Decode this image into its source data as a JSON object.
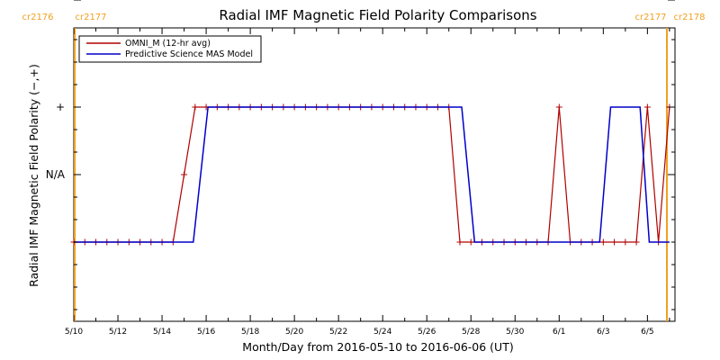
{
  "chart_data": {
    "type": "line",
    "title": "Radial IMF Magnetic Field Polarity Comparisons",
    "xlabel": "Month/Day from 2016-05-10 to 2016-06-06 (UT)",
    "ylabel": "Radial IMF Magnetic Field Polarity (−,+)",
    "x_tick_labels": [
      "5/10",
      "5/12",
      "5/14",
      "5/16",
      "5/18",
      "5/20",
      "5/22",
      "5/24",
      "5/26",
      "5/28",
      "5/30",
      "6/1",
      "6/3",
      "6/5"
    ],
    "y_tick_labels": [
      "−",
      "N/A",
      "+"
    ],
    "carrington_labels": {
      "left": [
        "cr2176",
        "cr2177"
      ],
      "right": [
        "cr2177",
        "cr2178"
      ]
    },
    "legend": {
      "placement": "top-left"
    },
    "colors": {
      "omni": "#b00000",
      "model": "#0000cc",
      "carrington": "#f0a020"
    },
    "series": [
      {
        "name": "OMNI_M (12-hr avg)",
        "color": "#b00000",
        "marker": "+",
        "x": [
          "5/10 00:00",
          "5/10 12:00",
          "5/11 00:00",
          "5/11 12:00",
          "5/12 00:00",
          "5/12 12:00",
          "5/13 00:00",
          "5/13 12:00",
          "5/14 00:00",
          "5/14 12:00",
          "5/15 00:00",
          "5/15 12:00",
          "5/16 00:00",
          "5/16 12:00",
          "5/17 00:00",
          "5/17 12:00",
          "5/18 00:00",
          "5/18 12:00",
          "5/19 00:00",
          "5/19 12:00",
          "5/20 00:00",
          "5/20 12:00",
          "5/21 00:00",
          "5/21 12:00",
          "5/22 00:00",
          "5/22 12:00",
          "5/23 00:00",
          "5/23 12:00",
          "5/24 00:00",
          "5/24 12:00",
          "5/25 00:00",
          "5/25 12:00",
          "5/26 00:00",
          "5/26 12:00",
          "5/27 00:00",
          "5/27 12:00",
          "5/28 00:00",
          "5/28 12:00",
          "5/29 00:00",
          "5/29 12:00",
          "5/30 00:00",
          "5/30 12:00",
          "5/31 00:00",
          "5/31 12:00",
          "6/1 00:00",
          "6/1 12:00",
          "6/2 00:00",
          "6/2 12:00",
          "6/3 00:00",
          "6/3 12:00",
          "6/4 00:00",
          "6/4 12:00",
          "6/5 00:00",
          "6/5 12:00",
          "6/6 00:00"
        ],
        "values": [
          "-",
          "-",
          "-",
          "-",
          "-",
          "-",
          "-",
          "-",
          "-",
          "-",
          "N/A",
          "+",
          "+",
          "+",
          "+",
          "+",
          "+",
          "+",
          "+",
          "+",
          "+",
          "+",
          "+",
          "+",
          "+",
          "+",
          "+",
          "+",
          "+",
          "+",
          "+",
          "+",
          "+",
          "+",
          "+",
          "-",
          "-",
          "-",
          "-",
          "-",
          "-",
          "-",
          "-",
          "-",
          "+",
          "-",
          "-",
          "-",
          "-",
          "-",
          "-",
          "-",
          "+",
          "-",
          "+"
        ]
      },
      {
        "name": "Predictive Science MAS Model",
        "color": "#0000cc",
        "points": [
          {
            "x": "5/10 00:00",
            "y": "-"
          },
          {
            "x": "5/15 10:00",
            "y": "-"
          },
          {
            "x": "5/16 02:00",
            "y": "+"
          },
          {
            "x": "5/27 14:00",
            "y": "+"
          },
          {
            "x": "5/28 04:00",
            "y": "-"
          },
          {
            "x": "6/2 20:00",
            "y": "-"
          },
          {
            "x": "6/3 08:00",
            "y": "+"
          },
          {
            "x": "6/4 16:00",
            "y": "+"
          },
          {
            "x": "6/5 02:00",
            "y": "-"
          },
          {
            "x": "6/6 00:00",
            "y": "-"
          }
        ]
      }
    ],
    "x_range": [
      "5/10 00:00",
      "6/6 06:00"
    ],
    "y_range_order": [
      "-",
      "N/A",
      "+"
    ],
    "grid": false
  }
}
